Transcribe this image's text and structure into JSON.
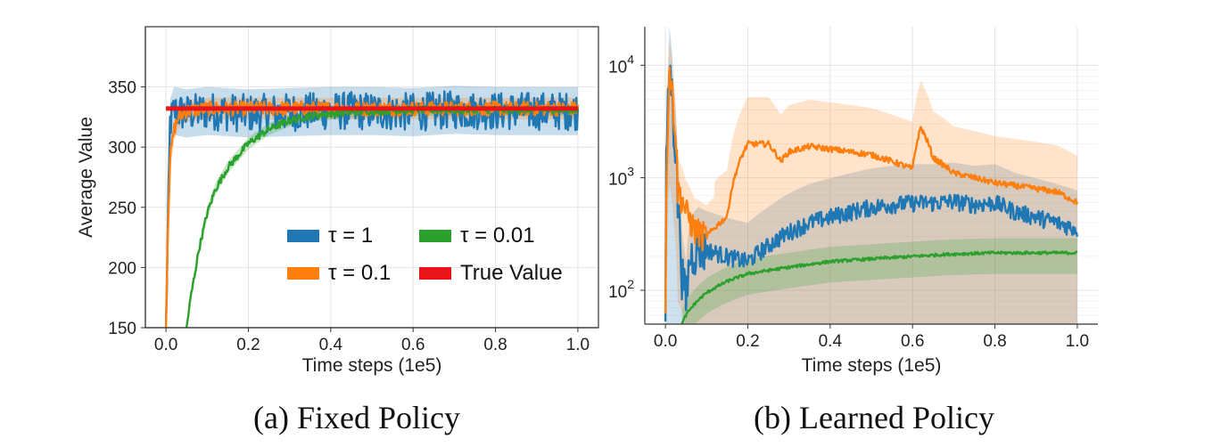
{
  "chart_data": [
    {
      "type": "line",
      "caption": "(a) Fixed Policy",
      "xlabel": "Time steps (1e5)",
      "ylabel": "Average Value",
      "xlim": [
        -0.05,
        1.05
      ],
      "ylim": [
        150,
        400
      ],
      "xticks": [
        0.0,
        0.2,
        0.4,
        0.6,
        0.8,
        1.0
      ],
      "xtick_labels": [
        "0.0",
        "0.2",
        "0.4",
        "0.6",
        "0.8",
        "1.0"
      ],
      "yticks": [
        150,
        200,
        250,
        300,
        350
      ],
      "ytick_labels": [
        "150",
        "200",
        "250",
        "300",
        "350"
      ],
      "grid": true,
      "legend": {
        "placement": "lower-right",
        "columns": 2
      },
      "series": [
        {
          "name": "τ = 1",
          "color": "#1f77b4",
          "x": [
            0.0,
            0.01,
            0.02,
            0.05,
            0.1,
            0.2,
            0.3,
            0.4,
            0.5,
            0.6,
            0.7,
            0.8,
            0.9,
            1.0
          ],
          "y": [
            150,
            320,
            330,
            328,
            330,
            328,
            329,
            330,
            330,
            329,
            331,
            330,
            330,
            330
          ]
        },
        {
          "name": "τ = 0.1",
          "color": "#ff7f0e",
          "x": [
            0.0,
            0.005,
            0.01,
            0.02,
            0.03,
            0.05,
            0.1,
            0.2,
            0.3,
            0.4,
            0.5,
            0.6,
            0.7,
            0.8,
            0.9,
            1.0
          ],
          "y": [
            150,
            240,
            290,
            315,
            325,
            330,
            332,
            332,
            332,
            332,
            332,
            332,
            332,
            332,
            332,
            332
          ]
        },
        {
          "name": "τ = 0.01",
          "color": "#2ca02c",
          "x": [
            0.05,
            0.06,
            0.08,
            0.1,
            0.12,
            0.15,
            0.2,
            0.25,
            0.3,
            0.35,
            0.4,
            0.5,
            0.6,
            0.7,
            0.8,
            0.9,
            1.0
          ],
          "y": [
            150,
            175,
            215,
            245,
            265,
            283,
            303,
            315,
            322,
            326,
            328,
            330,
            331,
            331,
            331,
            331,
            331
          ]
        },
        {
          "name": "True Value",
          "color": "#e8141a",
          "x": [
            0.0,
            1.0
          ],
          "y": [
            332,
            332
          ]
        }
      ]
    },
    {
      "type": "line",
      "caption": "(b) Learned Policy",
      "xlabel": "Time steps (1e5)",
      "ylabel": "",
      "yscale": "log",
      "xlim": [
        -0.05,
        1.05
      ],
      "ylim": [
        50,
        22000
      ],
      "xticks": [
        0.0,
        0.2,
        0.4,
        0.6,
        0.8,
        1.0
      ],
      "xtick_labels": [
        "0.0",
        "0.2",
        "0.4",
        "0.6",
        "0.8",
        "1.0"
      ],
      "yticks": [
        100,
        1000,
        10000
      ],
      "ytick_base": "10",
      "ytick_exponents": [
        "2",
        "3",
        "4"
      ],
      "grid": true,
      "series": [
        {
          "name": "",
          "color": "#1f77b4",
          "x": [
            0.0,
            0.005,
            0.01,
            0.02,
            0.03,
            0.04,
            0.05,
            0.06,
            0.08,
            0.1,
            0.15,
            0.2,
            0.25,
            0.3,
            0.35,
            0.4,
            0.45,
            0.5,
            0.55,
            0.6,
            0.65,
            0.7,
            0.75,
            0.8,
            0.85,
            0.9,
            0.95,
            1.0
          ],
          "y": [
            50,
            3000,
            10000,
            3000,
            600,
            150,
            80,
            200,
            250,
            230,
            200,
            180,
            250,
            330,
            400,
            450,
            500,
            550,
            580,
            600,
            600,
            620,
            580,
            600,
            500,
            450,
            400,
            350
          ]
        },
        {
          "name": "",
          "color": "#ff7f0e",
          "x": [
            0.0,
            0.005,
            0.01,
            0.02,
            0.03,
            0.05,
            0.07,
            0.1,
            0.15,
            0.2,
            0.25,
            0.28,
            0.3,
            0.35,
            0.4,
            0.45,
            0.5,
            0.55,
            0.6,
            0.62,
            0.65,
            0.7,
            0.75,
            0.8,
            0.85,
            0.9,
            0.95,
            1.0
          ],
          "y": [
            50,
            2000,
            9000,
            4000,
            800,
            500,
            350,
            300,
            450,
            2000,
            2000,
            1400,
            1700,
            1900,
            1800,
            1700,
            1600,
            1400,
            1200,
            2800,
            1500,
            1100,
            1000,
            900,
            850,
            800,
            750,
            600
          ]
        },
        {
          "name": "",
          "color": "#2ca02c",
          "x": [
            0.04,
            0.05,
            0.07,
            0.1,
            0.15,
            0.2,
            0.3,
            0.4,
            0.5,
            0.6,
            0.7,
            0.8,
            0.9,
            1.0
          ],
          "y": [
            50,
            60,
            75,
            95,
            120,
            140,
            160,
            180,
            190,
            200,
            210,
            215,
            215,
            215
          ]
        }
      ]
    }
  ]
}
